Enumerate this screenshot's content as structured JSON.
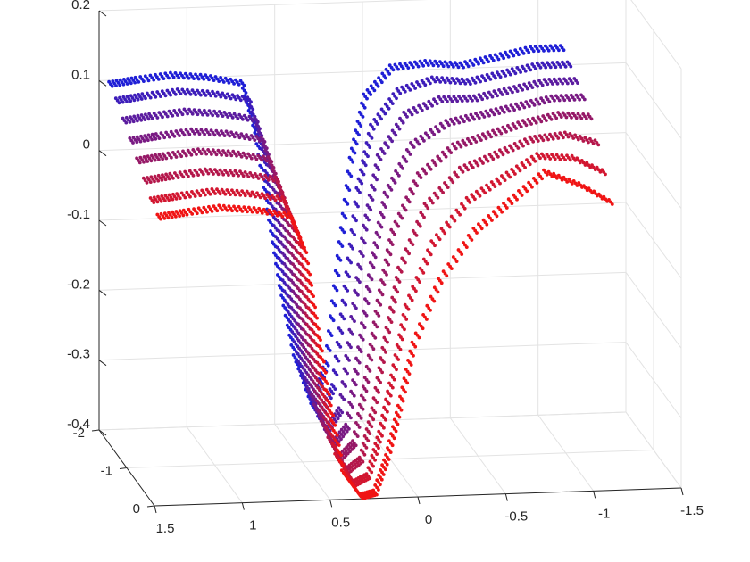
{
  "chart_data": {
    "type": "scatter",
    "title": "",
    "xlabel": "",
    "ylabel": "",
    "zlabel": "",
    "grid": true,
    "legend": "none",
    "xlim": [
      -1.5,
      1.5
    ],
    "ylim": [
      -2,
      0
    ],
    "zlim": [
      -0.4,
      0.2
    ],
    "x_ticks": [
      "1.5",
      "1",
      "0.5",
      "0",
      "-0.5",
      "-1",
      "-1.5"
    ],
    "y_ticks": [
      "-2",
      "-1",
      "0"
    ],
    "z_ticks": [
      "0.2",
      "0.1",
      "0",
      "-0.1",
      "-0.2",
      "-0.3",
      "-0.4"
    ],
    "color_start": "#1f1fd6",
    "color_end": "#f01414",
    "series": [
      {
        "y": -1.9,
        "x": [
          1.45,
          1.3,
          1.1,
          0.9,
          0.7,
          0.62,
          0.55,
          0.48,
          0.4,
          0.3,
          0.22,
          0.15,
          0.08,
          0.0,
          -0.15,
          -0.35,
          -0.55,
          -0.75,
          -0.95,
          -1.15
        ],
        "z": [
          0.1,
          0.105,
          0.11,
          0.105,
          0.095,
          0.02,
          -0.09,
          -0.2,
          -0.3,
          -0.37,
          -0.31,
          -0.16,
          -0.02,
          0.07,
          0.11,
          0.115,
          0.11,
          0.12,
          0.13,
          0.13
        ]
      },
      {
        "y": -1.65,
        "x": [
          1.45,
          1.3,
          1.1,
          0.9,
          0.7,
          0.62,
          0.55,
          0.48,
          0.4,
          0.3,
          0.22,
          0.15,
          0.08,
          0.0,
          -0.15,
          -0.35,
          -0.55,
          -0.75,
          -0.95,
          -1.15
        ],
        "z": [
          0.09,
          0.095,
          0.1,
          0.095,
          0.085,
          0.01,
          -0.1,
          -0.21,
          -0.31,
          -0.375,
          -0.33,
          -0.19,
          -0.05,
          0.04,
          0.09,
          0.105,
          0.1,
          0.11,
          0.12,
          0.12
        ]
      },
      {
        "y": -1.4,
        "x": [
          1.45,
          1.3,
          1.1,
          0.9,
          0.7,
          0.62,
          0.55,
          0.48,
          0.4,
          0.3,
          0.22,
          0.15,
          0.08,
          0.0,
          -0.15,
          -0.35,
          -0.55,
          -0.75,
          -0.95,
          -1.15
        ],
        "z": [
          0.075,
          0.08,
          0.085,
          0.08,
          0.07,
          0.0,
          -0.11,
          -0.22,
          -0.32,
          -0.38,
          -0.35,
          -0.22,
          -0.09,
          0.01,
          0.07,
          0.09,
          0.09,
          0.1,
          0.11,
          0.11
        ]
      },
      {
        "y": -1.15,
        "x": [
          1.45,
          1.3,
          1.1,
          0.9,
          0.7,
          0.62,
          0.55,
          0.48,
          0.4,
          0.3,
          0.22,
          0.15,
          0.08,
          0.0,
          -0.15,
          -0.35,
          -0.55,
          -0.75,
          -0.95,
          -1.15
        ],
        "z": [
          0.06,
          0.065,
          0.07,
          0.065,
          0.055,
          -0.01,
          -0.12,
          -0.23,
          -0.33,
          -0.385,
          -0.36,
          -0.25,
          -0.13,
          -0.03,
          0.04,
          0.07,
          0.08,
          0.09,
          0.1,
          0.1
        ]
      },
      {
        "y": -0.9,
        "x": [
          1.45,
          1.3,
          1.1,
          0.9,
          0.7,
          0.62,
          0.55,
          0.48,
          0.4,
          0.3,
          0.22,
          0.15,
          0.08,
          0.0,
          -0.15,
          -0.35,
          -0.55,
          -0.75,
          -0.95,
          -1.15
        ],
        "z": [
          0.045,
          0.05,
          0.055,
          0.05,
          0.04,
          -0.02,
          -0.13,
          -0.24,
          -0.34,
          -0.39,
          -0.37,
          -0.28,
          -0.17,
          -0.07,
          0.01,
          0.05,
          0.065,
          0.08,
          0.09,
          0.085
        ]
      },
      {
        "y": -0.65,
        "x": [
          1.45,
          1.3,
          1.1,
          0.9,
          0.7,
          0.62,
          0.55,
          0.48,
          0.4,
          0.3,
          0.22,
          0.15,
          0.08,
          0.0,
          -0.15,
          -0.35,
          -0.55,
          -0.75,
          -0.95,
          -1.15
        ],
        "z": [
          0.03,
          0.035,
          0.04,
          0.035,
          0.025,
          -0.03,
          -0.14,
          -0.25,
          -0.35,
          -0.395,
          -0.38,
          -0.31,
          -0.21,
          -0.11,
          -0.02,
          0.03,
          0.05,
          0.07,
          0.075,
          0.06
        ]
      },
      {
        "y": -0.4,
        "x": [
          1.45,
          1.3,
          1.1,
          0.9,
          0.7,
          0.62,
          0.55,
          0.48,
          0.4,
          0.3,
          0.22,
          0.15,
          0.08,
          0.0,
          -0.15,
          -0.35,
          -0.55,
          -0.75,
          -0.95,
          -1.15
        ],
        "z": [
          0.015,
          0.02,
          0.025,
          0.02,
          0.01,
          -0.04,
          -0.15,
          -0.26,
          -0.36,
          -0.4,
          -0.39,
          -0.33,
          -0.25,
          -0.15,
          -0.06,
          0.0,
          0.03,
          0.06,
          0.055,
          0.03
        ]
      },
      {
        "y": -0.15,
        "x": [
          1.45,
          1.3,
          1.1,
          0.9,
          0.7,
          0.62,
          0.55,
          0.48,
          0.4,
          0.3,
          0.22,
          0.15,
          0.08,
          0.0,
          -0.15,
          -0.35,
          -0.55,
          -0.75,
          -0.95,
          -1.15
        ],
        "z": [
          0.005,
          0.01,
          0.015,
          0.01,
          0.0,
          -0.05,
          -0.16,
          -0.27,
          -0.37,
          -0.405,
          -0.4,
          -0.35,
          -0.28,
          -0.19,
          -0.1,
          -0.03,
          0.01,
          0.05,
          0.03,
          0.0
        ]
      }
    ]
  }
}
